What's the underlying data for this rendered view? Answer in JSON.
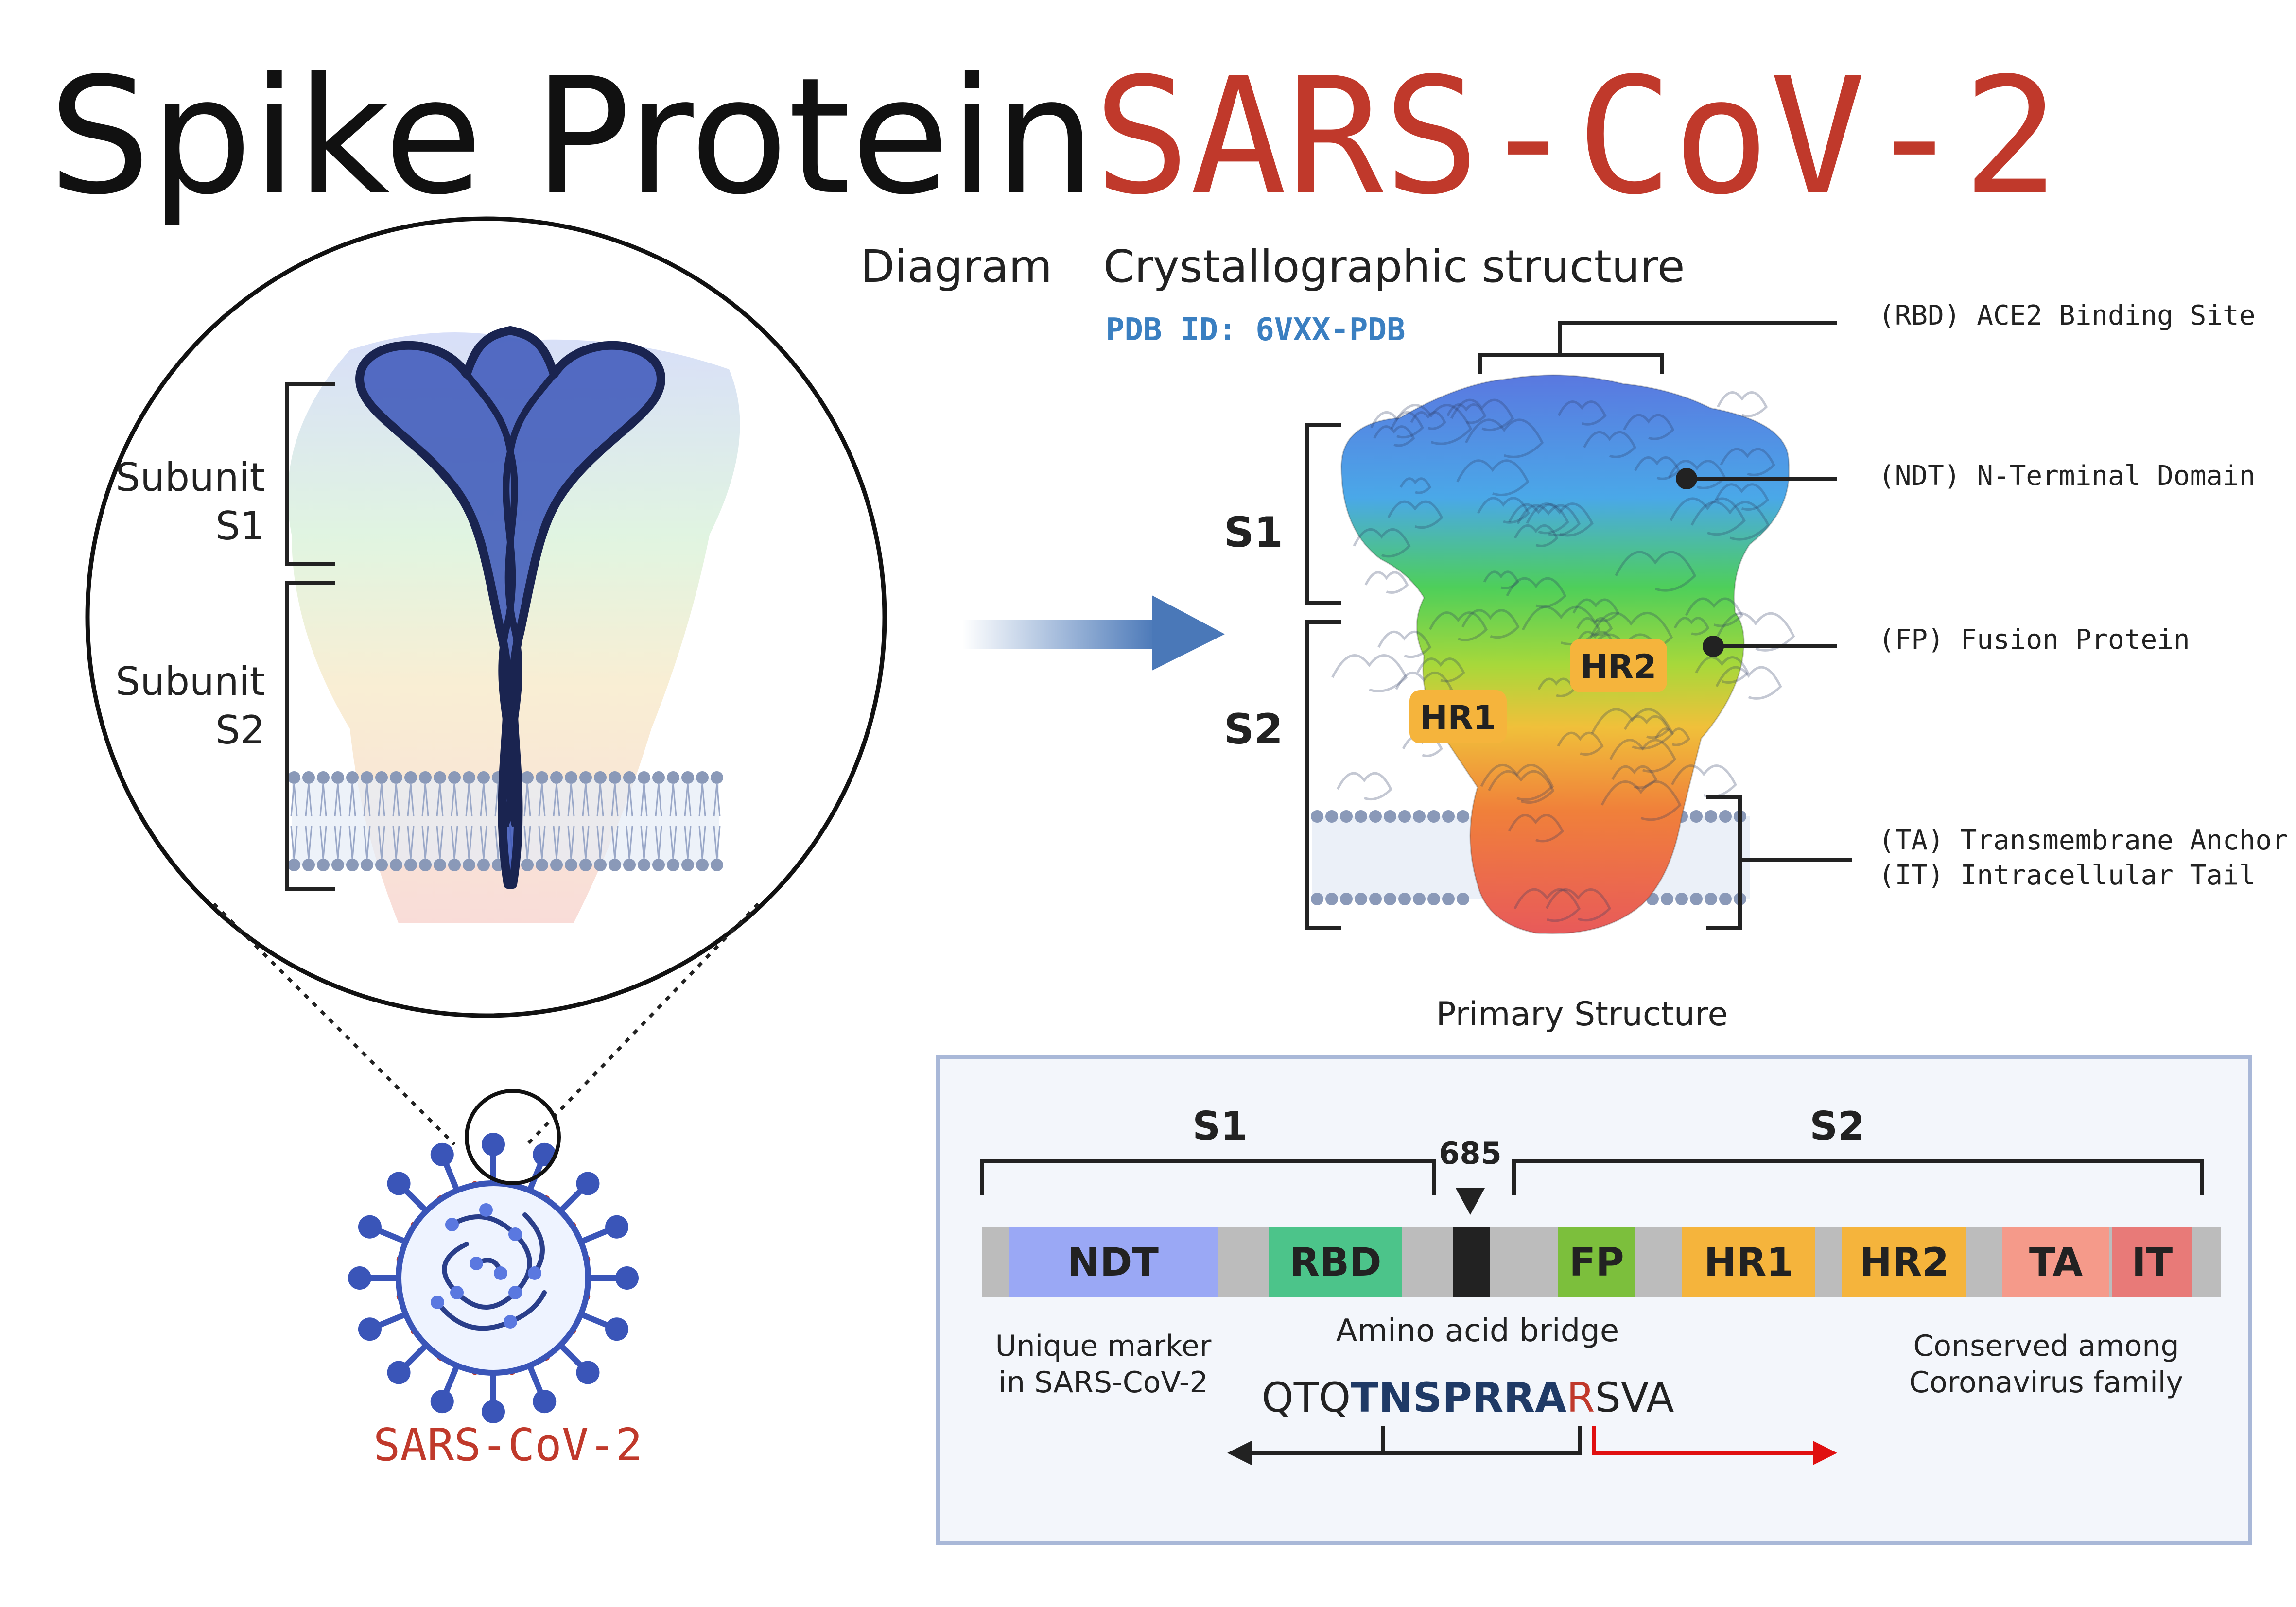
{
  "title": {
    "part1": "Spike Protein",
    "part2": "SARS-CoV-2"
  },
  "section_labels": {
    "diagram": "Diagram",
    "crystal": "Crystallographic structure",
    "pdb": "PDB ID: 6VXX-PDB"
  },
  "left_panel": {
    "subunit_s1": [
      "Subunit",
      "S1"
    ],
    "subunit_s2": [
      "Subunit",
      "S2"
    ],
    "virus_label": "SARS-CoV-2"
  },
  "crystal": {
    "s1": "S1",
    "s2": "S2",
    "hr1": "HR1",
    "hr2": "HR2",
    "annotations": {
      "rbd": "(RBD) ACE2 Binding Site",
      "ndt": "(NDT) N-Terminal Domain",
      "fp": "(FP)  Fusion Protein",
      "ta": "(TA)  Transmembrane Anchor",
      "it": "(IT)  Intracellular Tail"
    }
  },
  "primary": {
    "heading": "Primary Structure",
    "s1": "S1",
    "s2": "S2",
    "site": "685",
    "domains": [
      {
        "label": "NDT",
        "color": "#9aa8f5"
      },
      {
        "label": "RBD",
        "color": "#4cc48a"
      },
      {
        "label": "FP",
        "color": "#7cbf3c"
      },
      {
        "label": "HR1",
        "color": "#f5b43c"
      },
      {
        "label": "HR2",
        "color": "#f5b43c"
      },
      {
        "label": "TA",
        "color": "#f59a8a"
      },
      {
        "label": "IT",
        "color": "#e87a78"
      }
    ],
    "left_note": [
      "Unique marker",
      "in SARS-CoV-2"
    ],
    "bridge_label": "Amino acid bridge",
    "sequence": {
      "pre": "QTQ",
      "bold": "TNSPRRA",
      "red": "R",
      "post": "SVA"
    },
    "right_note": [
      "Conserved among",
      "Coronavirus family"
    ]
  },
  "colors": {
    "title_red": "#c0392b",
    "pdb_blue": "#3a7fc1",
    "spike_blue": "#3a55b8",
    "panel_bg": "#f3f6fb",
    "panel_border": "#a9b8d8"
  }
}
